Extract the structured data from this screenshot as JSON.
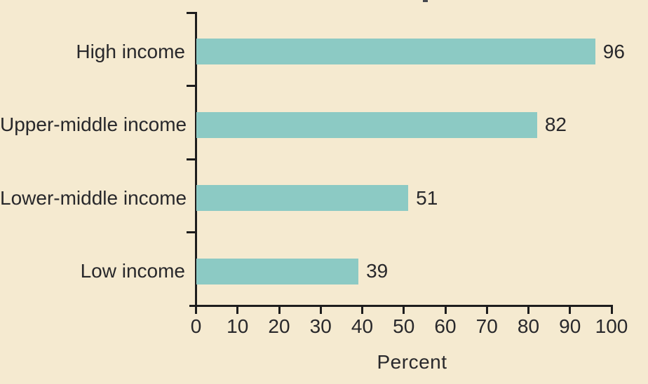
{
  "chart_data": {
    "type": "bar",
    "orientation": "horizontal",
    "title": "",
    "categories": [
      "High income",
      "Upper-middle income",
      "Lower-middle income",
      "Low income"
    ],
    "values": [
      96,
      82,
      51,
      39
    ],
    "data_labels": [
      "96",
      "82",
      "51",
      "39"
    ],
    "xlabel": "Percent",
    "ylabel": "",
    "xlim": [
      0,
      100
    ],
    "xticks": [
      "0",
      "10",
      "20",
      "30",
      "40",
      "50",
      "60",
      "70",
      "80",
      "90",
      "100"
    ],
    "grid": false,
    "legend": "none",
    "colors": {
      "background": "#f5ead0",
      "bar": "#8ccac4",
      "axis": "#1d1d1d",
      "text": "#28282b"
    }
  }
}
